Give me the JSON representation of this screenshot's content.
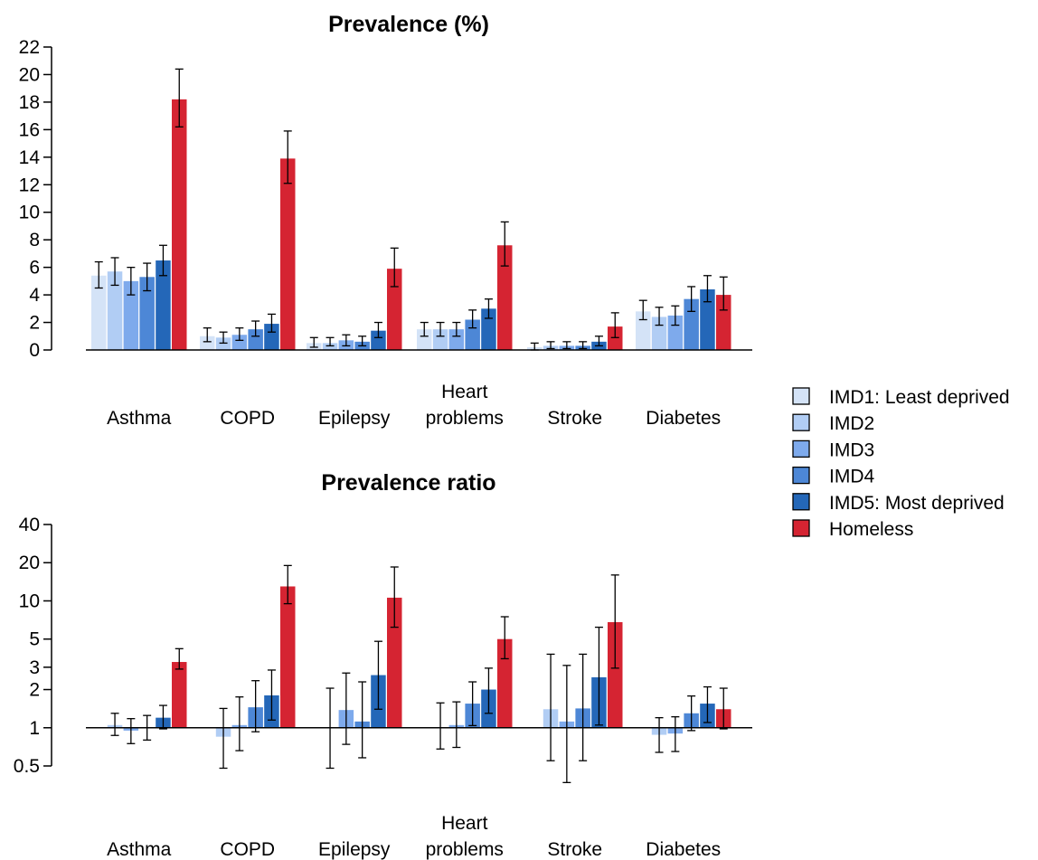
{
  "series_colors": [
    "#d4e3f7",
    "#b1cdf4",
    "#7eaaec",
    "#4d87d6",
    "#2467b8",
    "#d52432"
  ],
  "legend": [
    "IMD1: Least deprived",
    "IMD2",
    "IMD3",
    "IMD4",
    "IMD5: Most deprived",
    "Homeless"
  ],
  "chart_data": [
    {
      "type": "bar",
      "title": "Prevalence (%)",
      "categories": [
        [
          "Asthma"
        ],
        [
          "COPD"
        ],
        [
          "Epilepsy"
        ],
        [
          "Heart",
          "problems"
        ],
        [
          "Stroke"
        ],
        [
          "Diabetes"
        ]
      ],
      "ylim": [
        0,
        22
      ],
      "yticks": [
        "0",
        "2",
        "4",
        "6",
        "8",
        "10",
        "12",
        "14",
        "16",
        "18",
        "20",
        "22"
      ],
      "series": [
        {
          "name": "IMD1: Least deprived",
          "values": [
            5.4,
            1.0,
            0.5,
            1.5,
            0.2,
            2.8
          ],
          "lower": [
            4.5,
            0.6,
            0.2,
            1.0,
            0.0,
            2.2
          ],
          "upper": [
            6.4,
            1.6,
            0.9,
            2.0,
            0.5,
            3.6
          ]
        },
        {
          "name": "IMD2",
          "values": [
            5.7,
            0.9,
            0.5,
            1.5,
            0.3,
            2.4
          ],
          "lower": [
            4.7,
            0.5,
            0.3,
            1.0,
            0.1,
            1.8
          ],
          "upper": [
            6.7,
            1.3,
            0.9,
            2.0,
            0.6,
            3.1
          ]
        },
        {
          "name": "IMD3",
          "values": [
            5.0,
            1.1,
            0.7,
            1.5,
            0.3,
            2.5
          ],
          "lower": [
            4.0,
            0.7,
            0.3,
            1.0,
            0.1,
            1.8
          ],
          "upper": [
            6.0,
            1.6,
            1.1,
            2.0,
            0.6,
            3.2
          ]
        },
        {
          "name": "IMD4",
          "values": [
            5.3,
            1.5,
            0.6,
            2.2,
            0.3,
            3.7
          ],
          "lower": [
            4.3,
            1.0,
            0.3,
            1.6,
            0.1,
            2.8
          ],
          "upper": [
            6.3,
            2.1,
            1.0,
            2.9,
            0.6,
            4.6
          ]
        },
        {
          "name": "IMD5: Most deprived",
          "values": [
            6.5,
            1.9,
            1.4,
            3.0,
            0.6,
            4.4
          ],
          "lower": [
            5.4,
            1.3,
            0.9,
            2.3,
            0.3,
            3.5
          ],
          "upper": [
            7.6,
            2.6,
            2.0,
            3.7,
            1.0,
            5.4
          ]
        },
        {
          "name": "Homeless",
          "values": [
            18.2,
            13.9,
            5.9,
            7.6,
            1.7,
            4.0
          ],
          "lower": [
            16.2,
            12.1,
            4.6,
            6.1,
            0.9,
            2.9
          ],
          "upper": [
            20.4,
            15.9,
            7.4,
            9.3,
            2.7,
            5.3
          ]
        }
      ]
    },
    {
      "type": "bar",
      "title": "Prevalence ratio",
      "scale": "log",
      "baseline": 1,
      "categories": [
        [
          "Asthma"
        ],
        [
          "COPD"
        ],
        [
          "Epilepsy"
        ],
        [
          "Heart",
          "problems"
        ],
        [
          "Stroke"
        ],
        [
          "Diabetes"
        ]
      ],
      "ylim": [
        0.5,
        40
      ],
      "yticks": [
        "0.5",
        "1",
        "2",
        "3",
        "5",
        "10",
        "20",
        "40"
      ],
      "series": [
        {
          "name": "IMD1: Least deprived",
          "values": [
            1.0,
            1.0,
            1.0,
            1.0,
            1.0,
            1.0
          ],
          "lower": [
            null,
            null,
            null,
            null,
            null,
            null
          ],
          "upper": [
            null,
            null,
            null,
            null,
            null,
            null
          ]
        },
        {
          "name": "IMD2",
          "values": [
            1.05,
            0.85,
            1.0,
            1.0,
            1.4,
            0.88
          ],
          "lower": [
            0.87,
            0.48,
            0.48,
            0.68,
            0.55,
            0.64
          ],
          "upper": [
            1.3,
            1.42,
            2.05,
            1.57,
            3.8,
            1.2
          ]
        },
        {
          "name": "IMD3",
          "values": [
            0.95,
            1.05,
            1.38,
            1.05,
            1.12,
            0.9
          ],
          "lower": [
            0.75,
            0.66,
            0.74,
            0.7,
            0.37,
            0.65
          ],
          "upper": [
            1.18,
            1.75,
            2.7,
            1.6,
            3.1,
            1.22
          ]
        },
        {
          "name": "IMD4",
          "values": [
            1.0,
            1.45,
            1.12,
            1.55,
            1.42,
            1.3
          ],
          "lower": [
            0.8,
            0.93,
            0.58,
            1.04,
            0.55,
            0.95
          ],
          "upper": [
            1.25,
            2.35,
            2.3,
            2.3,
            3.8,
            1.78
          ]
        },
        {
          "name": "IMD5: Most deprived",
          "values": [
            1.2,
            1.8,
            2.6,
            2.0,
            2.5,
            1.55
          ],
          "lower": [
            0.98,
            1.15,
            1.4,
            1.3,
            1.05,
            1.1
          ],
          "upper": [
            1.5,
            2.85,
            4.8,
            2.95,
            6.2,
            2.1
          ]
        },
        {
          "name": "Homeless",
          "values": [
            3.3,
            13.0,
            10.6,
            5.0,
            6.8,
            1.4
          ],
          "lower": [
            2.9,
            9.5,
            6.2,
            3.5,
            2.95,
            0.98
          ],
          "upper": [
            4.2,
            19.0,
            18.5,
            7.5,
            16.0,
            2.05
          ]
        }
      ]
    }
  ]
}
